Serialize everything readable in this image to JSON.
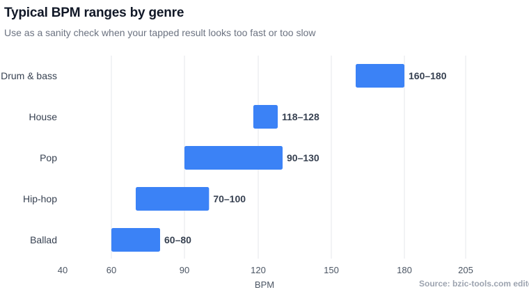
{
  "title": "Typical BPM ranges by genre",
  "subtitle": "Use as a sanity check when your tapped result looks too fast or too slow",
  "source": "Source: bzic-tools.com editor",
  "colors": {
    "bar": "#3b82f6",
    "grid": "#e5e7eb"
  },
  "chart_data": {
    "type": "bar",
    "orientation": "horizontal",
    "range_bars": true,
    "categories": [
      "Drum & bass",
      "House",
      "Pop",
      "Hip-hop",
      "Ballad"
    ],
    "ranges": [
      [
        160,
        180
      ],
      [
        118,
        128
      ],
      [
        90,
        130
      ],
      [
        70,
        100
      ],
      [
        60,
        80
      ]
    ],
    "labels": [
      "160–180",
      "118–128",
      "90–130",
      "70–100",
      "60–80"
    ],
    "xlabel": "BPM",
    "xlim": [
      40,
      205
    ],
    "xticks": [
      40,
      60,
      90,
      120,
      150,
      180,
      205
    ],
    "grid": true,
    "legend": "none"
  }
}
